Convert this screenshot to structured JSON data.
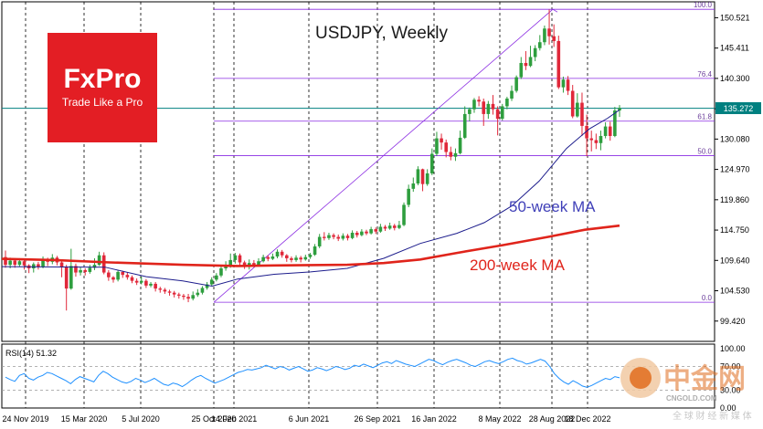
{
  "chart_data": {
    "type": "candlestick",
    "title": "USDJPY, Weekly",
    "brand": {
      "logo_text": "FxPro",
      "tagline": "Trade Like a Pro",
      "logo_color": "#e31e24"
    },
    "watermark": {
      "text": "中金网",
      "url": "CNGOLD.COM",
      "subtext": "全 球 财 经 新 媒 体"
    },
    "x_tick_labels": [
      "24 Nov 2019",
      "15 Mar 2020",
      "5 Jul 2020",
      "25 Oct 2020",
      "14 Feb 2021",
      "6 Jun 2021",
      "26 Sep 2021",
      "16 Jan 2022",
      "8 May 2022",
      "28 Aug 2022",
      "18 Dec 2022"
    ],
    "y_ticks": [
      "150.521",
      "145.411",
      "140.300",
      "135.190",
      "130.080",
      "124.970",
      "119.860",
      "114.750",
      "109.640",
      "104.530",
      "99.420"
    ],
    "y_range": [
      96.0,
      153.2
    ],
    "current_price": "135.272",
    "fibonacci": {
      "levels": [
        {
          "label": "100.0",
          "value": 151.94
        },
        {
          "label": "76.4",
          "value": 140.3
        },
        {
          "label": "61.8",
          "value": 133.1
        },
        {
          "label": "50.0",
          "value": 127.3
        },
        {
          "label": "0.0",
          "value": 102.59
        }
      ],
      "color": "#8a2be2"
    },
    "annotations": [
      {
        "text": "50-week MA",
        "color": "#3f3fb8"
      },
      {
        "text": "200-week MA",
        "color": "#e0241b"
      }
    ],
    "series": [
      {
        "name": "50-week MA",
        "color": "#1c1c8c",
        "points": [
          [
            108.7,
            108.6
          ],
          [
            115,
            108.5
          ],
          [
            160,
            106.9
          ],
          [
            200,
            106.2
          ],
          [
            232,
            105.3
          ],
          [
            260,
            106.5
          ],
          [
            300,
            107.3
          ],
          [
            340,
            107.7
          ],
          [
            380,
            108.3
          ],
          [
            420,
            110.0
          ],
          [
            460,
            112.5
          ],
          [
            500,
            114.2
          ],
          [
            530,
            116.0
          ],
          [
            560,
            118.8
          ],
          [
            590,
            123.0
          ],
          [
            620,
            128.5
          ],
          [
            645,
            131.8
          ],
          [
            665,
            133.6
          ],
          [
            678,
            135.0
          ]
        ]
      },
      {
        "name": "200-week MA",
        "color": "#e0241b",
        "points": [
          [
            108.7,
            109.9
          ],
          [
            60,
            109.7
          ],
          [
            120,
            109.3
          ],
          [
            200,
            108.9
          ],
          [
            260,
            108.7
          ],
          [
            300,
            108.8
          ],
          [
            380,
            108.9
          ],
          [
            420,
            109.2
          ],
          [
            460,
            109.8
          ],
          [
            500,
            110.9
          ],
          [
            550,
            112.2
          ],
          [
            600,
            113.6
          ],
          [
            640,
            114.8
          ],
          [
            678,
            115.5
          ]
        ]
      }
    ],
    "candles": [
      [
        110.2,
        108.9,
        111.3,
        108.4
      ],
      [
        108.9,
        109.6,
        110.1,
        108.3
      ],
      [
        109.6,
        108.9,
        110.0,
        108.4
      ],
      [
        108.9,
        109.5,
        110.0,
        108.6
      ],
      [
        109.5,
        108.8,
        109.9,
        108.1
      ],
      [
        108.8,
        108.3,
        109.0,
        107.5
      ],
      [
        108.3,
        109.0,
        109.3,
        107.6
      ],
      [
        109.0,
        108.6,
        109.4,
        108.1
      ],
      [
        108.6,
        109.8,
        110.3,
        108.3
      ],
      [
        109.8,
        109.4,
        110.1,
        108.7
      ],
      [
        109.4,
        110.1,
        110.7,
        109.0
      ],
      [
        110.1,
        109.3,
        110.4,
        108.8
      ],
      [
        109.3,
        108.5,
        109.6,
        106.8
      ],
      [
        108.5,
        104.9,
        108.9,
        101.2
      ],
      [
        104.9,
        108.7,
        111.6,
        104.7
      ],
      [
        108.7,
        107.6,
        109.1,
        106.9
      ],
      [
        107.6,
        108.0,
        108.5,
        107.1
      ],
      [
        108.0,
        107.7,
        108.3,
        107.1
      ],
      [
        107.7,
        108.4,
        108.9,
        107.4
      ],
      [
        108.4,
        108.9,
        110.0,
        108.0
      ],
      [
        108.9,
        110.5,
        111.1,
        108.7
      ],
      [
        110.5,
        107.6,
        111.0,
        107.3
      ],
      [
        107.6,
        106.8,
        108.0,
        106.2
      ],
      [
        106.8,
        106.4,
        107.0,
        105.9
      ],
      [
        106.4,
        107.7,
        108.0,
        106.1
      ],
      [
        107.7,
        107.2,
        107.9,
        106.7
      ],
      [
        107.2,
        106.8,
        107.6,
        106.4
      ],
      [
        106.8,
        106.2,
        107.1,
        105.8
      ],
      [
        106.2,
        105.9,
        106.6,
        105.5
      ],
      [
        105.9,
        106.2,
        106.9,
        105.6
      ],
      [
        106.2,
        105.4,
        106.5,
        105.0
      ],
      [
        105.4,
        105.7,
        106.0,
        105.1
      ],
      [
        105.7,
        104.9,
        106.0,
        104.4
      ],
      [
        104.9,
        104.7,
        105.2,
        104.2
      ],
      [
        104.7,
        104.4,
        105.0,
        104.0
      ],
      [
        104.4,
        104.2,
        104.7,
        103.7
      ],
      [
        104.2,
        103.9,
        104.5,
        103.4
      ],
      [
        103.9,
        103.7,
        104.2,
        103.2
      ],
      [
        103.7,
        103.5,
        104.0,
        103.0
      ],
      [
        103.5,
        103.2,
        104.0,
        102.6
      ],
      [
        103.2,
        103.8,
        104.4,
        102.9
      ],
      [
        103.8,
        104.2,
        104.8,
        103.5
      ],
      [
        104.2,
        105.0,
        105.3,
        103.9
      ],
      [
        105.0,
        105.6,
        106.0,
        104.7
      ],
      [
        105.6,
        106.4,
        106.8,
        105.3
      ],
      [
        106.4,
        107.1,
        107.5,
        106.1
      ],
      [
        107.1,
        108.3,
        108.8,
        106.8
      ],
      [
        108.3,
        108.9,
        109.5,
        107.9
      ],
      [
        108.9,
        109.7,
        110.8,
        108.4
      ],
      [
        109.7,
        110.5,
        110.9,
        109.1
      ],
      [
        110.5,
        109.3,
        110.8,
        108.8
      ],
      [
        109.3,
        108.6,
        109.6,
        108.2
      ],
      [
        108.6,
        109.2,
        109.8,
        108.1
      ],
      [
        109.2,
        108.9,
        109.7,
        108.5
      ],
      [
        108.9,
        109.5,
        110.0,
        108.6
      ],
      [
        109.5,
        110.2,
        110.6,
        109.3
      ],
      [
        110.2,
        109.9,
        110.5,
        109.5
      ],
      [
        109.9,
        110.3,
        110.8,
        109.7
      ],
      [
        110.3,
        111.1,
        111.5,
        110.0
      ],
      [
        111.1,
        110.5,
        111.4,
        110.1
      ],
      [
        110.5,
        110.0,
        110.7,
        109.4
      ],
      [
        110.0,
        109.7,
        110.3,
        109.3
      ],
      [
        109.7,
        110.1,
        110.5,
        109.4
      ],
      [
        110.1,
        109.8,
        110.4,
        109.3
      ],
      [
        109.8,
        110.2,
        110.6,
        109.6
      ],
      [
        110.2,
        110.6,
        110.9,
        109.9
      ],
      [
        110.6,
        112.0,
        112.4,
        110.4
      ],
      [
        112.0,
        113.6,
        114.1,
        111.7
      ],
      [
        113.6,
        113.4,
        114.4,
        113.0
      ],
      [
        113.4,
        113.9,
        114.3,
        113.1
      ],
      [
        113.9,
        113.6,
        114.2,
        113.2
      ],
      [
        113.6,
        113.3,
        114.0,
        112.9
      ],
      [
        113.3,
        113.8,
        114.2,
        113.0
      ],
      [
        113.8,
        113.4,
        114.1,
        113.0
      ],
      [
        113.4,
        114.3,
        114.7,
        113.2
      ],
      [
        114.3,
        113.9,
        114.6,
        113.5
      ],
      [
        113.9,
        114.5,
        114.9,
        113.7
      ],
      [
        114.5,
        114.2,
        114.8,
        113.9
      ],
      [
        114.2,
        114.9,
        115.3,
        114.0
      ],
      [
        114.9,
        114.5,
        115.2,
        114.1
      ],
      [
        114.5,
        115.3,
        115.8,
        114.3
      ],
      [
        115.3,
        115.0,
        115.6,
        114.6
      ],
      [
        115.0,
        115.5,
        116.0,
        114.8
      ],
      [
        115.5,
        115.1,
        115.8,
        114.7
      ],
      [
        115.1,
        115.6,
        116.3,
        114.9
      ],
      [
        115.6,
        119.0,
        119.4,
        115.4
      ],
      [
        119.0,
        121.7,
        122.4,
        118.6
      ],
      [
        121.7,
        122.6,
        123.6,
        121.2
      ],
      [
        122.6,
        125.0,
        125.5,
        122.3
      ],
      [
        125.0,
        122.5,
        125.1,
        121.3
      ],
      [
        122.5,
        124.3,
        125.0,
        122.2
      ],
      [
        124.3,
        127.6,
        128.5,
        124.0
      ],
      [
        127.6,
        130.2,
        131.3,
        127.2
      ],
      [
        130.2,
        129.5,
        131.0,
        128.3
      ],
      [
        129.5,
        127.9,
        130.0,
        127.0
      ],
      [
        127.9,
        127.1,
        128.8,
        126.5
      ],
      [
        127.1,
        127.7,
        128.5,
        126.4
      ],
      [
        127.7,
        130.3,
        131.5,
        127.5
      ],
      [
        130.3,
        134.3,
        135.6,
        130.1
      ],
      [
        134.3,
        135.1,
        135.4,
        133.1
      ],
      [
        135.1,
        136.7,
        137.0,
        134.5
      ],
      [
        136.7,
        136.4,
        137.3,
        135.6
      ],
      [
        136.4,
        134.3,
        136.9,
        132.3
      ],
      [
        134.3,
        136.0,
        136.5,
        133.5
      ],
      [
        136.0,
        135.1,
        137.5,
        134.2
      ],
      [
        135.1,
        133.5,
        135.6,
        130.7
      ],
      [
        133.5,
        135.6,
        136.0,
        133.2
      ],
      [
        135.6,
        136.9,
        137.2,
        135.1
      ],
      [
        136.9,
        138.2,
        139.1,
        136.5
      ],
      [
        138.2,
        140.5,
        140.8,
        137.9
      ],
      [
        140.5,
        142.9,
        143.9,
        140.2
      ],
      [
        142.9,
        142.4,
        144.9,
        141.7
      ],
      [
        142.4,
        143.9,
        145.8,
        142.2
      ],
      [
        143.9,
        145.4,
        145.9,
        143.2
      ],
      [
        145.4,
        146.4,
        147.6,
        145.0
      ],
      [
        146.4,
        148.7,
        149.2,
        145.9
      ],
      [
        148.7,
        147.4,
        151.9,
        146.0
      ],
      [
        147.4,
        146.6,
        149.4,
        145.6
      ],
      [
        146.6,
        138.8,
        147.5,
        138.5
      ],
      [
        138.8,
        140.1,
        140.6,
        137.9
      ],
      [
        140.1,
        138.2,
        140.7,
        137.5
      ],
      [
        138.2,
        133.9,
        139.2,
        133.6
      ],
      [
        133.9,
        136.2,
        137.8,
        133.7
      ],
      [
        136.2,
        132.3,
        137.9,
        130.6
      ],
      [
        132.3,
        130.2,
        134.2,
        127.2
      ],
      [
        130.2,
        129.9,
        131.5,
        128.0
      ],
      [
        129.9,
        129.4,
        131.0,
        128.4
      ],
      [
        129.4,
        130.6,
        131.5,
        128.2
      ],
      [
        130.6,
        132.2,
        132.9,
        130.2
      ],
      [
        132.2,
        130.6,
        133.0,
        129.8
      ],
      [
        130.6,
        134.9,
        135.5,
        130.4
      ],
      [
        134.9,
        135.3,
        135.8,
        133.8
      ]
    ]
  },
  "rsi": {
    "label": "RSI(14) 51.32",
    "ticks": [
      "100.00",
      "70.00",
      "30.00",
      "0.00"
    ],
    "series_name": "RSI(14)",
    "color": "#1e90ff",
    "levels": [
      70,
      30
    ],
    "values": [
      52,
      48,
      45,
      55,
      58,
      50,
      47,
      52,
      55,
      60,
      58,
      54,
      50,
      46,
      41,
      48,
      53,
      50,
      47,
      44,
      55,
      62,
      58,
      52,
      48,
      44,
      42,
      45,
      50,
      47,
      43,
      46,
      50,
      45,
      40,
      38,
      42,
      40,
      36,
      41,
      47,
      52,
      55,
      50,
      46,
      42,
      45,
      48,
      52,
      56,
      60,
      62,
      65,
      64,
      66,
      68,
      72,
      69,
      66,
      70,
      68,
      64,
      67,
      70,
      66,
      62,
      64,
      68,
      66,
      63,
      66,
      70,
      68,
      65,
      67,
      72,
      70,
      74,
      71,
      68,
      72,
      76,
      78,
      75,
      80,
      77,
      74,
      72,
      70,
      74,
      78,
      82,
      80,
      76,
      73,
      77,
      80,
      82,
      79,
      76,
      72,
      70,
      74,
      78,
      80,
      77,
      75,
      78,
      82,
      84,
      80,
      78,
      74,
      76,
      79,
      82,
      79,
      70,
      58,
      50,
      44,
      40,
      46,
      42,
      37,
      35,
      38,
      42,
      46,
      50,
      48,
      53,
      51
    ]
  }
}
